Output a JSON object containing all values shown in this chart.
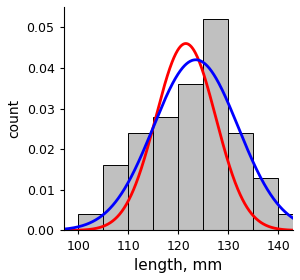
{
  "bar_edges": [
    100,
    105,
    110,
    115,
    120,
    125,
    130,
    135,
    140,
    145
  ],
  "bar_heights": [
    0.004,
    0.016,
    0.024,
    0.028,
    0.036,
    0.052,
    0.024,
    0.013,
    0.004
  ],
  "bar_color": "#c0c0c0",
  "bar_edgecolor": "#000000",
  "red_mean": 121.5,
  "red_std": 6.0,
  "red_amplitude": 0.046,
  "blue_mean": 123.5,
  "blue_std": 8.5,
  "blue_amplitude": 0.042,
  "xlim": [
    97,
    143
  ],
  "ylim": [
    0,
    0.055
  ],
  "yticks": [
    0.0,
    0.01,
    0.02,
    0.03,
    0.04,
    0.05
  ],
  "xticks": [
    100,
    110,
    120,
    130,
    140
  ],
  "xlabel": "length, mm",
  "ylabel": "count",
  "xlabel_fontsize": 11,
  "ylabel_fontsize": 10,
  "tick_fontsize": 9,
  "red_color": "#ff0000",
  "blue_color": "#0000ff",
  "line_width": 2.0,
  "background_color": "#ffffff"
}
